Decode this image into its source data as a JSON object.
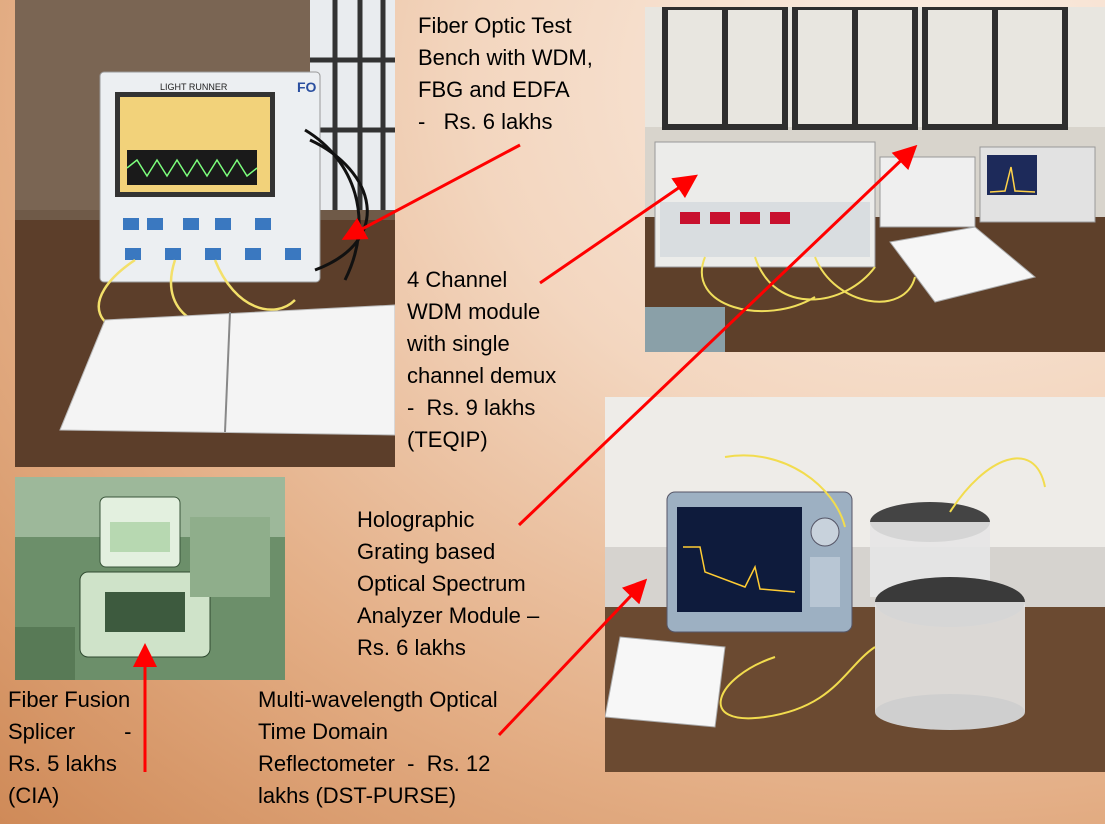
{
  "captions": {
    "test_bench": [
      "Fiber Optic Test",
      "Bench with WDM,",
      "FBG and EDFA",
      "-   Rs. 6 lakhs"
    ],
    "wdm": [
      "4 Channel",
      "WDM module",
      "with single",
      "channel demux",
      "-  Rs. 9 lakhs",
      "(TEQIP)"
    ],
    "osa": [
      "Holographic",
      "Grating based",
      "Optical Spectrum",
      "Analyzer Module –",
      "Rs. 6 lakhs"
    ],
    "splicer": [
      "Fiber Fusion",
      "Splicer        -",
      "Rs. 5 lakhs",
      "(CIA)"
    ],
    "otdr": [
      "Multi-wavelength Optical",
      "Time Domain",
      "Reflectometer  -  Rs. 12",
      "lakhs (DST-PURSE)"
    ]
  },
  "photo_labels": {
    "test_bench_brand": "LIGHT RUNNER",
    "test_bench_logo": "FO"
  },
  "colors": {
    "arrow": "#ff0000"
  }
}
